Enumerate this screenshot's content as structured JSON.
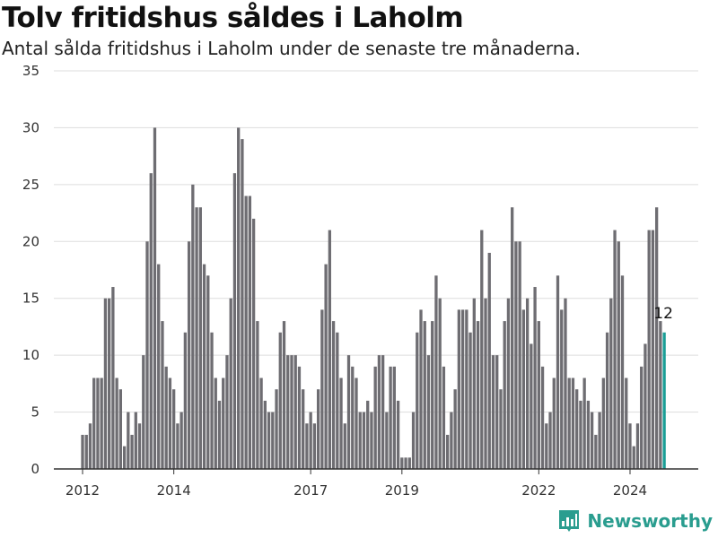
{
  "colors": {
    "bar": "#6e6d72",
    "highlight": "#1a9e96",
    "grid": "#dddddd",
    "axis": "#333333",
    "brand": "#2a9d8f"
  },
  "chart_data": {
    "type": "bar",
    "title": "Tolv fritidshus såldes i Laholm",
    "subtitle": "Antal sålda fritidshus i Laholm under de senaste tre månaderna.",
    "xlabel": "",
    "ylabel": "",
    "ylim": [
      0,
      35
    ],
    "yticks": [
      0,
      5,
      10,
      15,
      20,
      25,
      30,
      35
    ],
    "grid": true,
    "x_start": "2012-01",
    "x_ticks": [
      {
        "label": "2012",
        "index": 0
      },
      {
        "label": "2014",
        "index": 24
      },
      {
        "label": "2017",
        "index": 60
      },
      {
        "label": "2019",
        "index": 84
      },
      {
        "label": "2022",
        "index": 120
      },
      {
        "label": "2024",
        "index": 144
      }
    ],
    "values": [
      3,
      3,
      4,
      8,
      8,
      8,
      15,
      15,
      16,
      8,
      7,
      2,
      5,
      3,
      5,
      4,
      10,
      20,
      26,
      30,
      18,
      13,
      9,
      8,
      7,
      4,
      5,
      12,
      20,
      25,
      23,
      23,
      18,
      17,
      12,
      8,
      6,
      8,
      10,
      15,
      26,
      30,
      29,
      24,
      24,
      22,
      13,
      8,
      6,
      5,
      5,
      7,
      12,
      13,
      10,
      10,
      10,
      9,
      7,
      4,
      5,
      4,
      7,
      14,
      18,
      21,
      13,
      12,
      8,
      4,
      10,
      9,
      8,
      5,
      5,
      6,
      5,
      9,
      10,
      10,
      5,
      9,
      9,
      6,
      1,
      1,
      1,
      5,
      12,
      14,
      13,
      10,
      13,
      17,
      15,
      9,
      3,
      5,
      7,
      14,
      14,
      14,
      12,
      15,
      13,
      21,
      15,
      19,
      10,
      10,
      7,
      13,
      15,
      23,
      20,
      20,
      14,
      15,
      11,
      16,
      13,
      9,
      4,
      5,
      8,
      17,
      14,
      15,
      8,
      8,
      7,
      6,
      8,
      6,
      5,
      3,
      5,
      8,
      12,
      15,
      21,
      20,
      17,
      8,
      4,
      2,
      4,
      9,
      11,
      21,
      21,
      23,
      13,
      12
    ],
    "highlight_index": 153,
    "annotation": "12"
  },
  "brand": {
    "name": "Newsworthy"
  }
}
